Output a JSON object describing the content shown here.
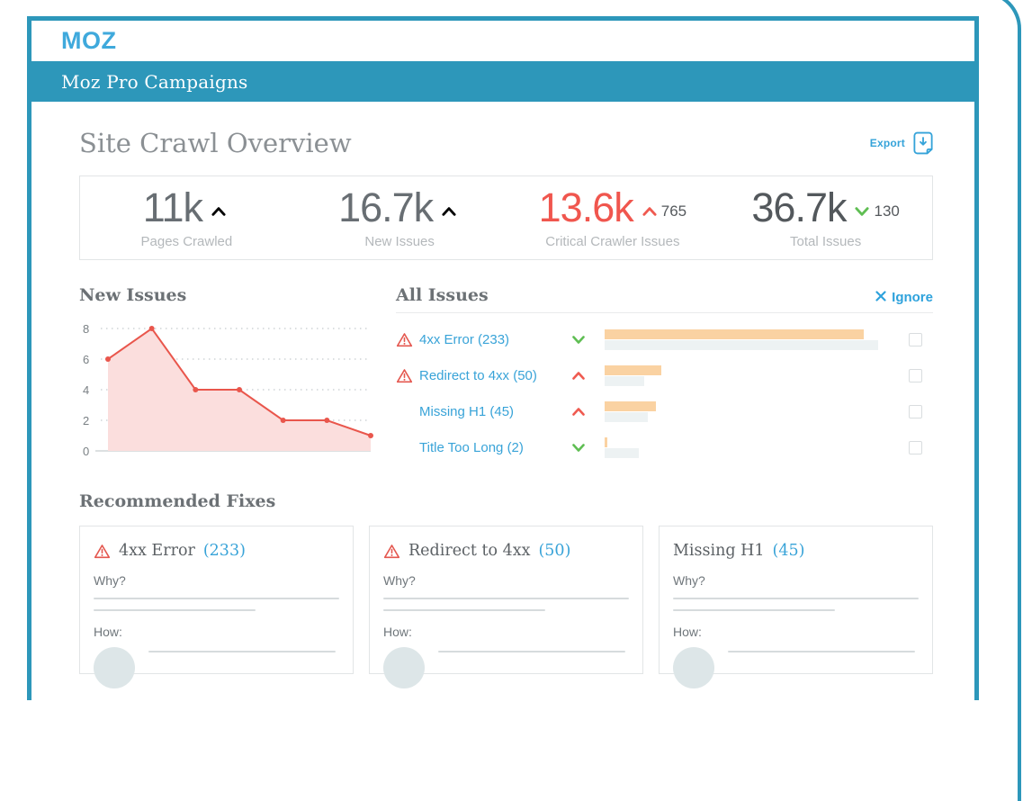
{
  "window": {
    "logo_text": "MOZ",
    "nav_title": "Moz Pro Campaigns"
  },
  "page": {
    "title": "Site Crawl Overview"
  },
  "export": {
    "label": "Export"
  },
  "stats": [
    {
      "value": "11k",
      "label": "Pages Crawled",
      "color": "#686e73"
    },
    {
      "value": "16.7k",
      "label": "New Issues",
      "color": "#686e73"
    },
    {
      "value": "13.6k",
      "label": "Critical Crawler Issues",
      "color": "#f0564e",
      "trend": {
        "direction": "up",
        "delta": "765"
      }
    },
    {
      "value": "36.7k",
      "label": "Total Issues",
      "color": "#53585c",
      "trend": {
        "direction": "down",
        "delta": "130"
      }
    }
  ],
  "sections": {
    "new_issues": "New Issues",
    "all_issues": "All Issues",
    "recommended_fixes": "Recommended Fixes"
  },
  "all_issues": {
    "ignore_label": "Ignore",
    "rows": [
      {
        "warn": true,
        "label": "4xx Error (233)",
        "trend": "down",
        "bar_pct": 91,
        "prev_pct": 96
      },
      {
        "warn": true,
        "label": "Redirect to 4xx (50)",
        "trend": "up",
        "bar_pct": 20,
        "prev_pct": 14
      },
      {
        "warn": false,
        "label": "Missing H1 (45)",
        "trend": "up",
        "bar_pct": 18,
        "prev_pct": 15
      },
      {
        "warn": false,
        "label": "Title Too Long (2)",
        "trend": "down",
        "bar_pct": 1,
        "prev_pct": 12
      }
    ]
  },
  "chart_data": {
    "type": "area",
    "title": "New Issues",
    "x": [
      1,
      2,
      3,
      4,
      5,
      6,
      7
    ],
    "values": [
      6,
      8,
      4,
      4,
      2,
      2,
      1
    ],
    "yticks": [
      0,
      2,
      4,
      6,
      8
    ],
    "ylim": [
      0,
      8
    ],
    "xlabel": "",
    "ylabel": "",
    "grid": "dotted-horizontal",
    "legend": "none",
    "line_color": "#e9564c",
    "fill_color": "#fbdedd",
    "marker": "circle"
  },
  "fixes": {
    "cards": [
      {
        "warn": true,
        "title": "4xx Error",
        "count": "(233)",
        "why": "Why?",
        "how": "How:"
      },
      {
        "warn": true,
        "title": "Redirect to 4xx",
        "count": "(50)",
        "why": "Why?",
        "how": "How:"
      },
      {
        "warn": false,
        "title": "Missing H1",
        "count": "(45)",
        "why": "Why?",
        "how": "How:"
      }
    ]
  },
  "colors": {
    "frame_teal": "#2d97ba",
    "logo_blue": "#3fa9dc",
    "link_blue": "#38a3d8",
    "alert_red": "#ef5a50",
    "good_green": "#5fbe53",
    "bar_orange": "#fad2a2",
    "bar_prev_gray": "#edf2f3"
  }
}
